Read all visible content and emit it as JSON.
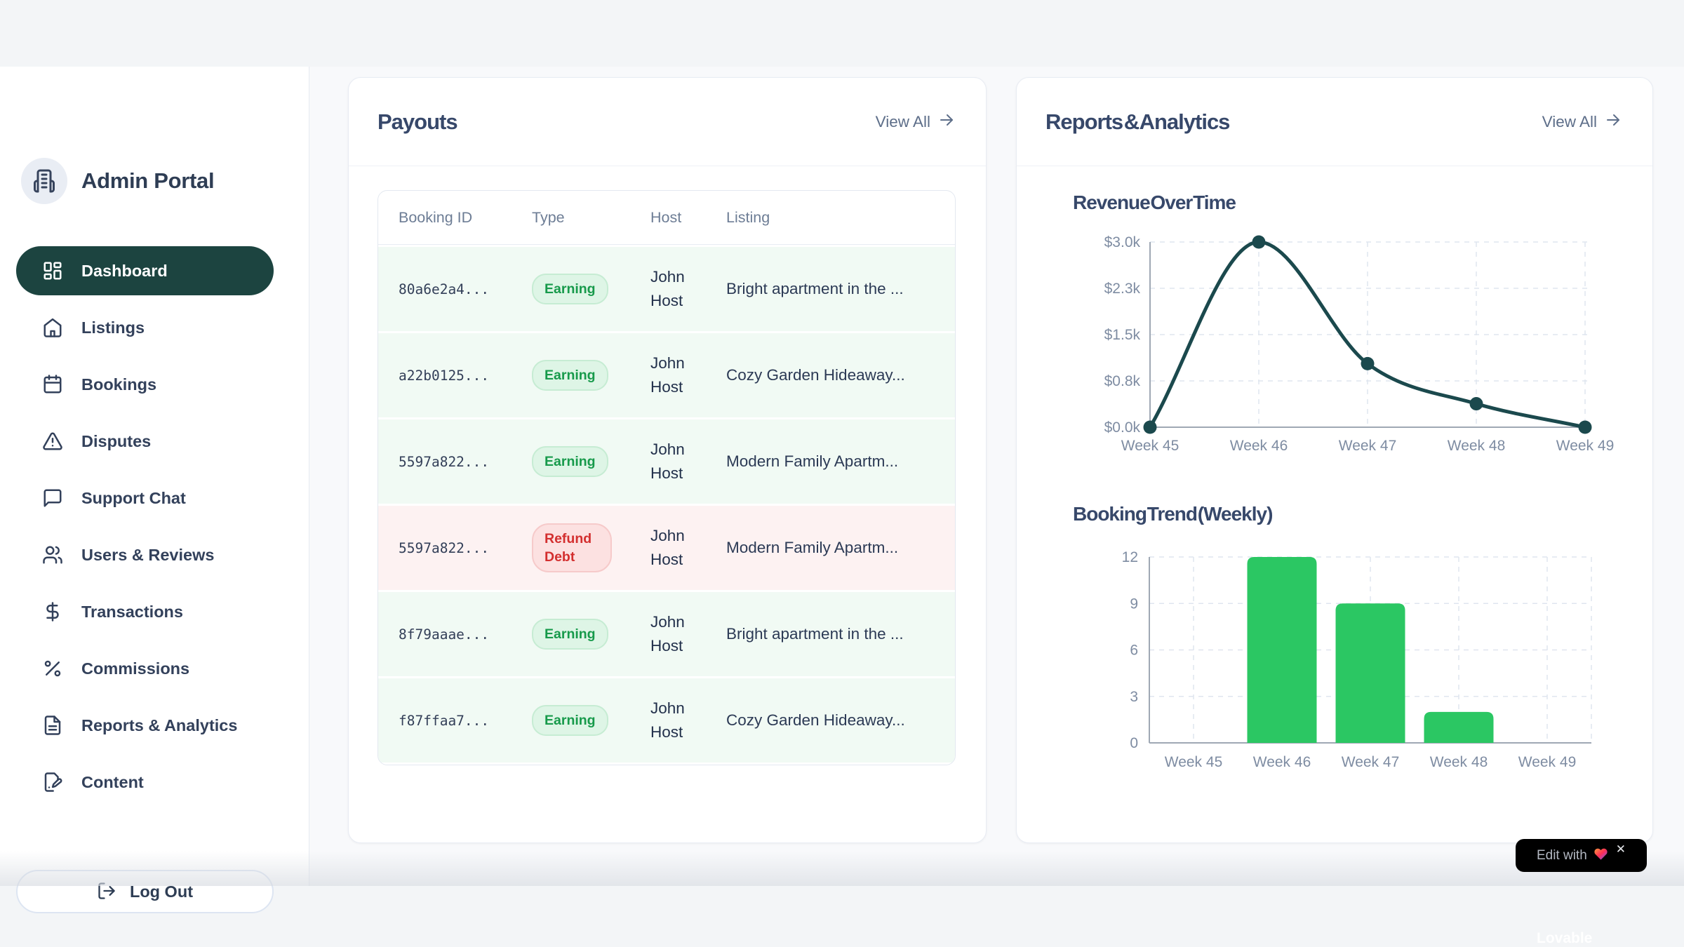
{
  "colors": {
    "active_nav_bg": "#1c4440",
    "line_color": "#1b494d",
    "bar_color": "#2bc763",
    "earning_text": "#179a4b",
    "earning_bg": "#def5e6",
    "refund_text": "#d32f2f",
    "refund_bg": "#fce1e1",
    "row_earning_bg": "#f1faf4",
    "row_refund_bg": "#fdf2f2"
  },
  "sidebar": {
    "brand_title": "Admin Portal",
    "items": [
      {
        "label": "Dashboard",
        "icon": "dashboard",
        "active": true
      },
      {
        "label": "Listings",
        "icon": "home",
        "active": false
      },
      {
        "label": "Bookings",
        "icon": "calendar",
        "active": false
      },
      {
        "label": "Disputes",
        "icon": "alert-triangle",
        "active": false
      },
      {
        "label": "Support Chat",
        "icon": "message-square",
        "active": false
      },
      {
        "label": "Users & Reviews",
        "icon": "users",
        "active": false
      },
      {
        "label": "Transactions",
        "icon": "dollar",
        "active": false
      },
      {
        "label": "Commissions",
        "icon": "percent",
        "active": false
      },
      {
        "label": "Reports & Analytics",
        "icon": "file-text",
        "active": false
      },
      {
        "label": "Content",
        "icon": "file-edit",
        "active": false
      }
    ],
    "logout_label": "Log Out"
  },
  "payouts": {
    "title": "Payouts",
    "view_all_label": "View All",
    "table": {
      "headers": [
        "Booking ID",
        "Type",
        "Host",
        "Listing"
      ],
      "rows": [
        {
          "booking_id": "80a6e2a4...",
          "type": "Earning",
          "tone": "earning",
          "host": "John Host",
          "listing": "Bright apartment in the ..."
        },
        {
          "booking_id": "a22b0125...",
          "type": "Earning",
          "tone": "earning",
          "host": "John Host",
          "listing": "Cozy Garden Hideaway..."
        },
        {
          "booking_id": "5597a822...",
          "type": "Earning",
          "tone": "earning",
          "host": "John Host",
          "listing": "Modern Family Apartm..."
        },
        {
          "booking_id": "5597a822...",
          "type": "Refund Debt",
          "tone": "refund",
          "host": "John Host",
          "listing": "Modern Family Apartm..."
        },
        {
          "booking_id": "8f79aaae...",
          "type": "Earning",
          "tone": "earning",
          "host": "John Host",
          "listing": "Bright apartment in the ..."
        },
        {
          "booking_id": "f87ffaa7...",
          "type": "Earning",
          "tone": "earning",
          "host": "John Host",
          "listing": "Cozy Garden Hideaway..."
        }
      ]
    }
  },
  "reports": {
    "title": "Reports & Analytics",
    "view_all_label": "View All"
  },
  "chart_data": [
    {
      "type": "line",
      "title": "Revenue Over Time",
      "categories": [
        "Week 45",
        "Week 46",
        "Week 47",
        "Week 48",
        "Week 49"
      ],
      "values": [
        0,
        3000,
        1030,
        380,
        0
      ],
      "y_ticks": [
        {
          "label": "$3.0k",
          "value": 3000
        },
        {
          "label": "$2.3k",
          "value": 2250
        },
        {
          "label": "$1.5k",
          "value": 1500
        },
        {
          "label": "$0.8k",
          "value": 750
        },
        {
          "label": "$0.0k",
          "value": 0
        }
      ],
      "ylim": [
        0,
        3000
      ],
      "xlabel": "",
      "ylabel": "",
      "grid": "dashed",
      "legend": "none",
      "line_color": "#1b494d"
    },
    {
      "type": "bar",
      "title": "Booking Trend (Weekly)",
      "categories": [
        "Week 45",
        "Week 46",
        "Week 47",
        "Week 48",
        "Week 49"
      ],
      "values": [
        0,
        12,
        9,
        2,
        0
      ],
      "y_ticks": [
        {
          "label": "12",
          "value": 12
        },
        {
          "label": "9",
          "value": 9
        },
        {
          "label": "6",
          "value": 6
        },
        {
          "label": "3",
          "value": 3
        },
        {
          "label": "0",
          "value": 0
        }
      ],
      "ylim": [
        0,
        12
      ],
      "xlabel": "",
      "ylabel": "",
      "grid": "dashed",
      "legend": "none",
      "bar_color": "#2bc763"
    }
  ],
  "lovable": {
    "prefix": "Edit with",
    "brand": "Lovable",
    "close": "✕"
  }
}
